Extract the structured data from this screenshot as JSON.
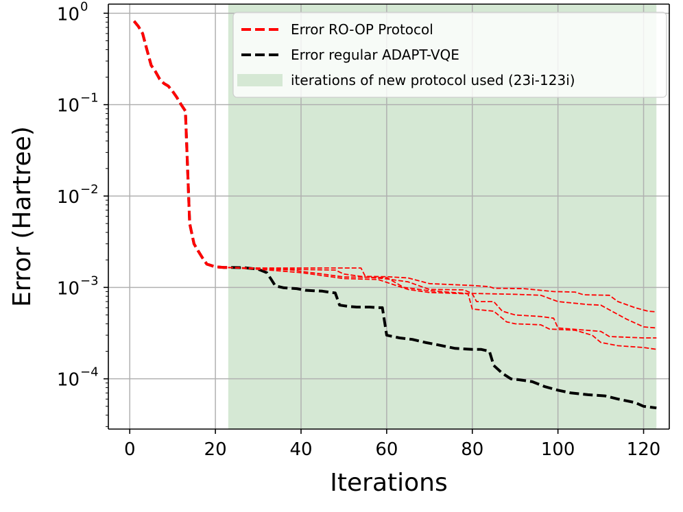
{
  "chart_data": {
    "type": "line",
    "xlabel": "Iterations",
    "ylabel": "Error (Hartree)",
    "yscale": "log",
    "xlim": [
      -5,
      126
    ],
    "ylim_exp": [
      -4.55,
      0.1
    ],
    "xticks": [
      0,
      20,
      40,
      60,
      80,
      100,
      120
    ],
    "yticks": [
      {
        "exp": 0,
        "base": "10",
        "sup": "0"
      },
      {
        "exp": -1,
        "base": "10",
        "sup": "−1"
      },
      {
        "exp": -2,
        "base": "10",
        "sup": "−2"
      },
      {
        "exp": -3,
        "base": "10",
        "sup": "−3"
      },
      {
        "exp": -4,
        "base": "10",
        "sup": "−4"
      }
    ],
    "grid": true,
    "legend_position": "top-right",
    "shaded_region": {
      "label": "iterations of new protocol used (23i-123i)",
      "x_start": 23,
      "x_end": 123,
      "color": "#d5e8d4"
    },
    "series": [
      {
        "name": "Error regular ADAPT-VQE",
        "color": "#000000",
        "style": "dashed-thick",
        "points": [
          [
            1,
            0.82
          ],
          [
            2,
            0.72
          ],
          [
            3,
            0.6
          ],
          [
            4,
            0.4
          ],
          [
            5,
            0.27
          ],
          [
            6,
            0.23
          ],
          [
            7,
            0.19
          ],
          [
            8,
            0.17
          ],
          [
            9,
            0.16
          ],
          [
            10,
            0.14
          ],
          [
            11,
            0.12
          ],
          [
            12,
            0.1
          ],
          [
            13,
            0.085
          ],
          [
            14,
            0.005
          ],
          [
            15,
            0.003
          ],
          [
            16,
            0.0025
          ],
          [
            17,
            0.0021
          ],
          [
            18,
            0.0018
          ],
          [
            20,
            0.00168
          ],
          [
            22,
            0.00165
          ],
          [
            24,
            0.00165
          ],
          [
            27,
            0.00164
          ],
          [
            30,
            0.00158
          ],
          [
            32,
            0.00145
          ],
          [
            33,
            0.00123
          ],
          [
            34,
            0.00104
          ],
          [
            36,
            0.00099
          ],
          [
            39,
            0.00097
          ],
          [
            41,
            0.00093
          ],
          [
            43,
            0.00092
          ],
          [
            45,
            0.00091
          ],
          [
            47,
            0.00088
          ],
          [
            48,
            0.00087
          ],
          [
            49,
            0.00064
          ],
          [
            51,
            0.00062
          ],
          [
            53,
            0.00061
          ],
          [
            56,
            0.00061
          ],
          [
            58,
            0.0006
          ],
          [
            59,
            0.0006
          ],
          [
            60,
            0.0003
          ],
          [
            63,
            0.00028
          ],
          [
            66,
            0.00027
          ],
          [
            69,
            0.00025
          ],
          [
            72,
            0.000235
          ],
          [
            76,
            0.000215
          ],
          [
            80,
            0.00021
          ],
          [
            82,
            0.00021
          ],
          [
            84,
            0.0002
          ],
          [
            85,
            0.00014
          ],
          [
            87,
            0.000115
          ],
          [
            89,
            0.0001
          ],
          [
            91,
            9.75e-05
          ],
          [
            94,
            9.3e-05
          ],
          [
            97,
            8.2e-05
          ],
          [
            100,
            7.5e-05
          ],
          [
            103,
            7e-05
          ],
          [
            107,
            6.7e-05
          ],
          [
            111,
            6.5e-05
          ],
          [
            114,
            6e-05
          ],
          [
            118,
            5.5e-05
          ],
          [
            120,
            5e-05
          ],
          [
            123,
            4.8e-05
          ]
        ]
      },
      {
        "name": "Error RO-OP Protocol",
        "color": "#ff0000",
        "style": "dashed-thick",
        "points": [
          [
            1,
            0.82
          ],
          [
            2,
            0.72
          ],
          [
            3,
            0.6
          ],
          [
            4,
            0.4
          ],
          [
            5,
            0.27
          ],
          [
            6,
            0.23
          ],
          [
            7,
            0.19
          ],
          [
            8,
            0.17
          ],
          [
            9,
            0.16
          ],
          [
            10,
            0.14
          ],
          [
            11,
            0.12
          ],
          [
            12,
            0.1
          ],
          [
            13,
            0.085
          ],
          [
            14,
            0.005
          ],
          [
            15,
            0.003
          ],
          [
            16,
            0.0025
          ],
          [
            17,
            0.0021
          ],
          [
            18,
            0.0018
          ],
          [
            20,
            0.00168
          ],
          [
            22,
            0.00165
          ],
          [
            23,
            0.00165
          ]
        ]
      },
      {
        "name": "",
        "color": "#ff0000",
        "style": "dashed-thin",
        "points": [
          [
            23,
            0.00165
          ],
          [
            30,
            0.00163
          ],
          [
            40,
            0.00163
          ],
          [
            50,
            0.00163
          ],
          [
            54,
            0.00163
          ],
          [
            55,
            0.00132
          ],
          [
            60,
            0.00131
          ],
          [
            65,
            0.00127
          ],
          [
            70,
            0.0011
          ],
          [
            80,
            0.00105
          ],
          [
            84,
            0.00102
          ],
          [
            85,
            0.00098
          ],
          [
            92,
            0.00097
          ],
          [
            99,
            0.0009
          ],
          [
            104,
            0.00089
          ],
          [
            106,
            0.00083
          ],
          [
            112,
            0.00082
          ],
          [
            114,
            0.0007
          ],
          [
            118,
            0.0006
          ],
          [
            121,
            0.00055
          ],
          [
            123,
            0.00054
          ]
        ]
      },
      {
        "name": "",
        "color": "#ff0000",
        "style": "dashed-thin",
        "points": [
          [
            23,
            0.00165
          ],
          [
            30,
            0.00162
          ],
          [
            40,
            0.00157
          ],
          [
            48,
            0.00155
          ],
          [
            50,
            0.0014
          ],
          [
            55,
            0.0013
          ],
          [
            60,
            0.00124
          ],
          [
            65,
            0.00115
          ],
          [
            70,
            0.00095
          ],
          [
            78,
            0.00094
          ],
          [
            80,
            0.00086
          ],
          [
            90,
            0.00084
          ],
          [
            96,
            0.00082
          ],
          [
            100,
            0.0007
          ],
          [
            107,
            0.00065
          ],
          [
            110,
            0.00064
          ],
          [
            116,
            0.00045
          ],
          [
            120,
            0.00037
          ],
          [
            123,
            0.00036
          ]
        ]
      },
      {
        "name": "",
        "color": "#ff0000",
        "style": "dashed-thin",
        "points": [
          [
            23,
            0.00165
          ],
          [
            30,
            0.0016
          ],
          [
            38,
            0.00155
          ],
          [
            40,
            0.0015
          ],
          [
            45,
            0.0014
          ],
          [
            50,
            0.0013
          ],
          [
            60,
            0.00128
          ],
          [
            64,
            0.001
          ],
          [
            70,
            0.00092
          ],
          [
            80,
            0.00085
          ],
          [
            81,
            0.0007
          ],
          [
            85,
            0.0007
          ],
          [
            87,
            0.00055
          ],
          [
            90,
            0.0005
          ],
          [
            96,
            0.00048
          ],
          [
            99,
            0.00046
          ],
          [
            100,
            0.00036
          ],
          [
            110,
            0.00033
          ],
          [
            112,
            0.00029
          ],
          [
            120,
            0.00028
          ],
          [
            123,
            0.00028
          ]
        ]
      },
      {
        "name": "",
        "color": "#ff0000",
        "style": "dashed-thin",
        "points": [
          [
            23,
            0.00165
          ],
          [
            30,
            0.00158
          ],
          [
            40,
            0.00145
          ],
          [
            50,
            0.00125
          ],
          [
            58,
            0.00122
          ],
          [
            65,
            0.00095
          ],
          [
            70,
            0.00088
          ],
          [
            79,
            0.00085
          ],
          [
            80,
            0.00058
          ],
          [
            85,
            0.00055
          ],
          [
            88,
            0.00042
          ],
          [
            90,
            0.0004
          ],
          [
            96,
            0.00039
          ],
          [
            98,
            0.00035
          ],
          [
            104,
            0.00034
          ],
          [
            108,
            0.0003
          ],
          [
            110,
            0.00025
          ],
          [
            114,
            0.00023
          ],
          [
            120,
            0.00022
          ],
          [
            123,
            0.00021
          ]
        ]
      }
    ],
    "legend": [
      {
        "label": "Error RO-OP Protocol",
        "kind": "line",
        "color": "#ff0000"
      },
      {
        "label": "Error regular ADAPT-VQE",
        "kind": "line",
        "color": "#000000"
      },
      {
        "label": "iterations of new protocol used (23i-123i)",
        "kind": "patch",
        "color": "#d5e8d4"
      }
    ]
  }
}
